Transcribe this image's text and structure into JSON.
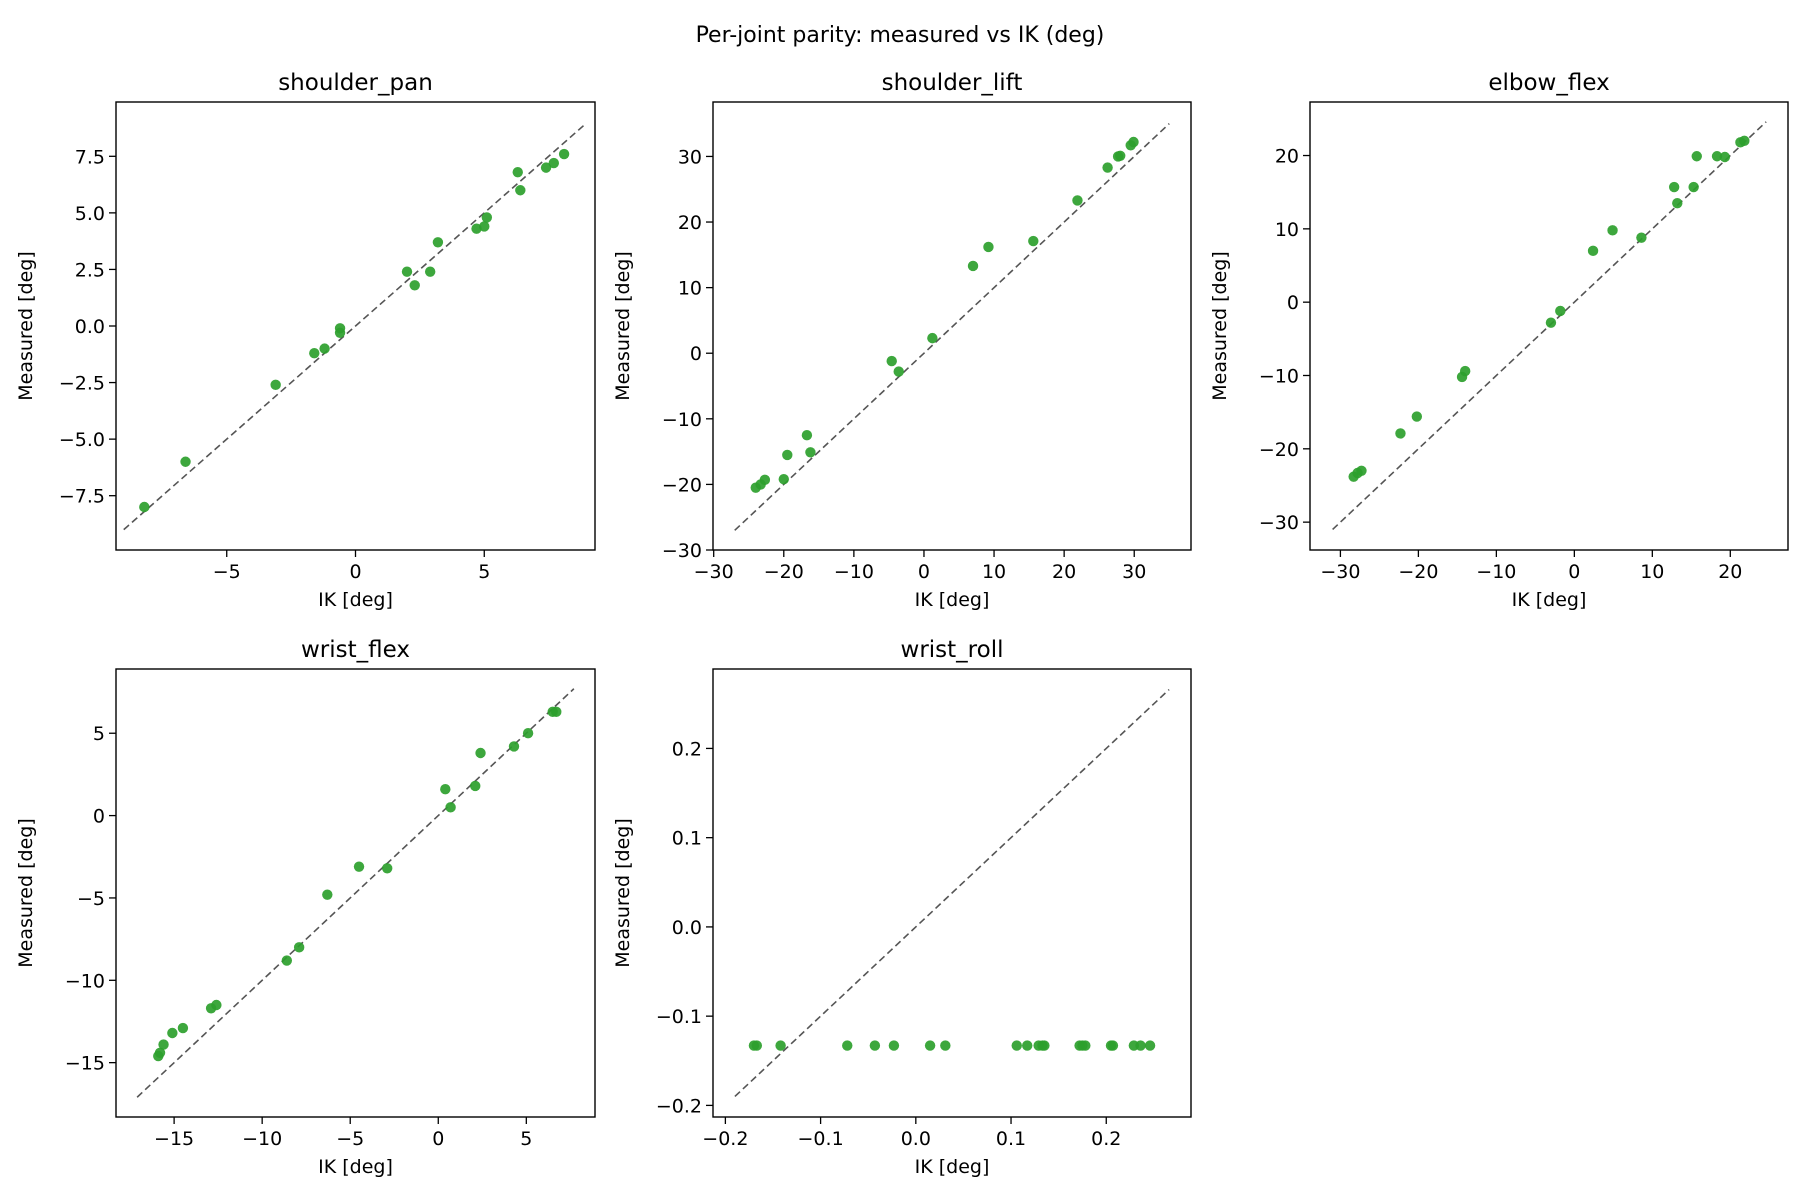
{
  "figure": {
    "title": "Per-joint parity: measured vs IK (deg)"
  },
  "chart_data": [
    {
      "type": "scatter",
      "title": "shoulder_pan",
      "xlabel": "IK [deg]",
      "ylabel": "Measured [deg]",
      "xlim": [
        -9.3,
        9.3
      ],
      "ylim": [
        -9.9,
        9.9
      ],
      "xticks": [
        -5,
        0,
        5
      ],
      "xtick_labels": [
        "−5",
        "0",
        "5"
      ],
      "yticks": [
        -7.5,
        -5.0,
        -2.5,
        0.0,
        2.5,
        5.0,
        7.5
      ],
      "ytick_labels": [
        "−7.5",
        "−5.0",
        "−2.5",
        "0.0",
        "2.5",
        "5.0",
        "7.5"
      ],
      "identity_line": [
        -9.0,
        8.9
      ],
      "marker_color": "#2ca02c",
      "line_color": "#555555",
      "points": [
        [
          -8.2,
          -8.0
        ],
        [
          -6.6,
          -6.0
        ],
        [
          -3.1,
          -2.6
        ],
        [
          -1.6,
          -1.2
        ],
        [
          -1.2,
          -1.0
        ],
        [
          -0.6,
          -0.1
        ],
        [
          -0.6,
          -0.3
        ],
        [
          2.0,
          2.4
        ],
        [
          2.3,
          1.8
        ],
        [
          2.9,
          2.4
        ],
        [
          3.2,
          3.7
        ],
        [
          4.7,
          4.3
        ],
        [
          5.0,
          4.4
        ],
        [
          5.1,
          4.8
        ],
        [
          6.3,
          6.8
        ],
        [
          6.4,
          6.0
        ],
        [
          7.4,
          7.0
        ],
        [
          7.7,
          7.2
        ],
        [
          8.1,
          7.6
        ]
      ]
    },
    {
      "type": "scatter",
      "title": "shoulder_lift",
      "xlabel": "IK [deg]",
      "ylabel": "Measured [deg]",
      "xlim": [
        -30.1,
        38.1
      ],
      "ylim": [
        -30.0,
        38.3
      ],
      "xticks": [
        -30,
        -20,
        -10,
        0,
        10,
        20,
        30
      ],
      "xtick_labels": [
        "−30",
        "−20",
        "−10",
        "0",
        "10",
        "20",
        "30"
      ],
      "yticks": [
        -30,
        -20,
        -10,
        0,
        10,
        20,
        30
      ],
      "ytick_labels": [
        "−30",
        "−20",
        "−10",
        "0",
        "10",
        "20",
        "30"
      ],
      "identity_line": [
        -27.0,
        35.0
      ],
      "marker_color": "#2ca02c",
      "line_color": "#555555",
      "points": [
        [
          -24.0,
          -20.5
        ],
        [
          -23.3,
          -20.0
        ],
        [
          -22.7,
          -19.3
        ],
        [
          -20.0,
          -19.2
        ],
        [
          -19.5,
          -15.5
        ],
        [
          -16.7,
          -12.5
        ],
        [
          -16.2,
          -15.1
        ],
        [
          -4.6,
          -1.2
        ],
        [
          -3.6,
          -2.8
        ],
        [
          1.2,
          2.3
        ],
        [
          7.0,
          13.3
        ],
        [
          9.2,
          16.2
        ],
        [
          15.6,
          17.1
        ],
        [
          21.9,
          23.3
        ],
        [
          26.2,
          28.3
        ],
        [
          27.7,
          30.0
        ],
        [
          28.0,
          30.1
        ],
        [
          29.5,
          31.7
        ],
        [
          29.9,
          32.2
        ]
      ]
    },
    {
      "type": "scatter",
      "title": "elbow_flex",
      "xlabel": "IK [deg]",
      "ylabel": "Measured [deg]",
      "xlim": [
        -33.9,
        27.4
      ],
      "ylim": [
        -33.8,
        27.3
      ],
      "xticks": [
        -30,
        -20,
        -10,
        0,
        10,
        20
      ],
      "xtick_labels": [
        "−30",
        "−20",
        "−10",
        "0",
        "10",
        "20"
      ],
      "yticks": [
        -30,
        -20,
        -10,
        0,
        10,
        20
      ],
      "ytick_labels": [
        "−30",
        "−20",
        "−10",
        "0",
        "10",
        "20"
      ],
      "identity_line": [
        -31.0,
        24.6
      ],
      "marker_color": "#2ca02c",
      "line_color": "#555555",
      "points": [
        [
          -28.3,
          -23.8
        ],
        [
          -27.8,
          -23.3
        ],
        [
          -27.3,
          -23.0
        ],
        [
          -22.3,
          -17.9
        ],
        [
          -20.2,
          -15.6
        ],
        [
          -14.4,
          -10.2
        ],
        [
          -14.0,
          -9.4
        ],
        [
          -3.0,
          -2.8
        ],
        [
          -1.8,
          -1.2
        ],
        [
          2.4,
          7.0
        ],
        [
          4.9,
          9.8
        ],
        [
          8.6,
          8.8
        ],
        [
          12.8,
          15.7
        ],
        [
          13.2,
          13.5
        ],
        [
          15.3,
          15.7
        ],
        [
          15.7,
          19.9
        ],
        [
          18.3,
          19.9
        ],
        [
          19.3,
          19.8
        ],
        [
          21.3,
          21.8
        ],
        [
          21.8,
          22.0
        ]
      ]
    },
    {
      "type": "scatter",
      "title": "wrist_flex",
      "xlabel": "IK [deg]",
      "ylabel": "Measured [deg]",
      "xlim": [
        -18.3,
        8.9
      ],
      "ylim": [
        -18.3,
        8.9
      ],
      "xticks": [
        -15,
        -10,
        -5,
        0,
        5
      ],
      "xtick_labels": [
        "−15",
        "−10",
        "−5",
        "0",
        "5"
      ],
      "yticks": [
        -15,
        -10,
        -5,
        0,
        5
      ],
      "ytick_labels": [
        "−15",
        "−10",
        "−5",
        "0",
        "5"
      ],
      "identity_line": [
        -17.1,
        7.7
      ],
      "marker_color": "#2ca02c",
      "line_color": "#555555",
      "points": [
        [
          -15.9,
          -14.6
        ],
        [
          -15.8,
          -14.4
        ],
        [
          -15.6,
          -13.9
        ],
        [
          -15.1,
          -13.2
        ],
        [
          -14.5,
          -12.9
        ],
        [
          -12.9,
          -11.7
        ],
        [
          -12.6,
          -11.5
        ],
        [
          -8.6,
          -8.8
        ],
        [
          -7.9,
          -8.0
        ],
        [
          -6.3,
          -4.8
        ],
        [
          -4.5,
          -3.1
        ],
        [
          -2.9,
          -3.2
        ],
        [
          0.4,
          1.6
        ],
        [
          0.7,
          0.5
        ],
        [
          2.1,
          1.8
        ],
        [
          2.4,
          3.8
        ],
        [
          4.3,
          4.2
        ],
        [
          5.1,
          5.0
        ],
        [
          6.5,
          6.3
        ],
        [
          6.7,
          6.3
        ]
      ]
    },
    {
      "type": "scatter",
      "title": "wrist_roll",
      "xlabel": "IK [deg]",
      "ylabel": "Measured [deg]",
      "xlim": [
        -0.213,
        0.289
      ],
      "ylim": [
        -0.213,
        0.289
      ],
      "xticks": [
        -0.2,
        -0.1,
        0.0,
        0.1,
        0.2
      ],
      "xtick_labels": [
        "−0.2",
        "−0.1",
        "0.0",
        "0.1",
        "0.2"
      ],
      "yticks": [
        -0.2,
        -0.1,
        0.0,
        0.1,
        0.2
      ],
      "ytick_labels": [
        "−0.2",
        "−0.1",
        "0.0",
        "0.1",
        "0.2"
      ],
      "identity_line": [
        -0.19,
        0.266
      ],
      "marker_color": "#2ca02c",
      "line_color": "#555555",
      "points": [
        [
          -0.17,
          -0.133
        ],
        [
          -0.167,
          -0.133
        ],
        [
          -0.142,
          -0.133
        ],
        [
          -0.072,
          -0.133
        ],
        [
          -0.043,
          -0.133
        ],
        [
          -0.023,
          -0.133
        ],
        [
          0.015,
          -0.133
        ],
        [
          0.031,
          -0.133
        ],
        [
          0.106,
          -0.133
        ],
        [
          0.117,
          -0.133
        ],
        [
          0.129,
          -0.133
        ],
        [
          0.133,
          -0.133
        ],
        [
          0.135,
          -0.133
        ],
        [
          0.172,
          -0.133
        ],
        [
          0.175,
          -0.133
        ],
        [
          0.178,
          -0.133
        ],
        [
          0.205,
          -0.133
        ],
        [
          0.207,
          -0.133
        ],
        [
          0.229,
          -0.133
        ],
        [
          0.236,
          -0.133
        ],
        [
          0.246,
          -0.133
        ]
      ]
    }
  ]
}
